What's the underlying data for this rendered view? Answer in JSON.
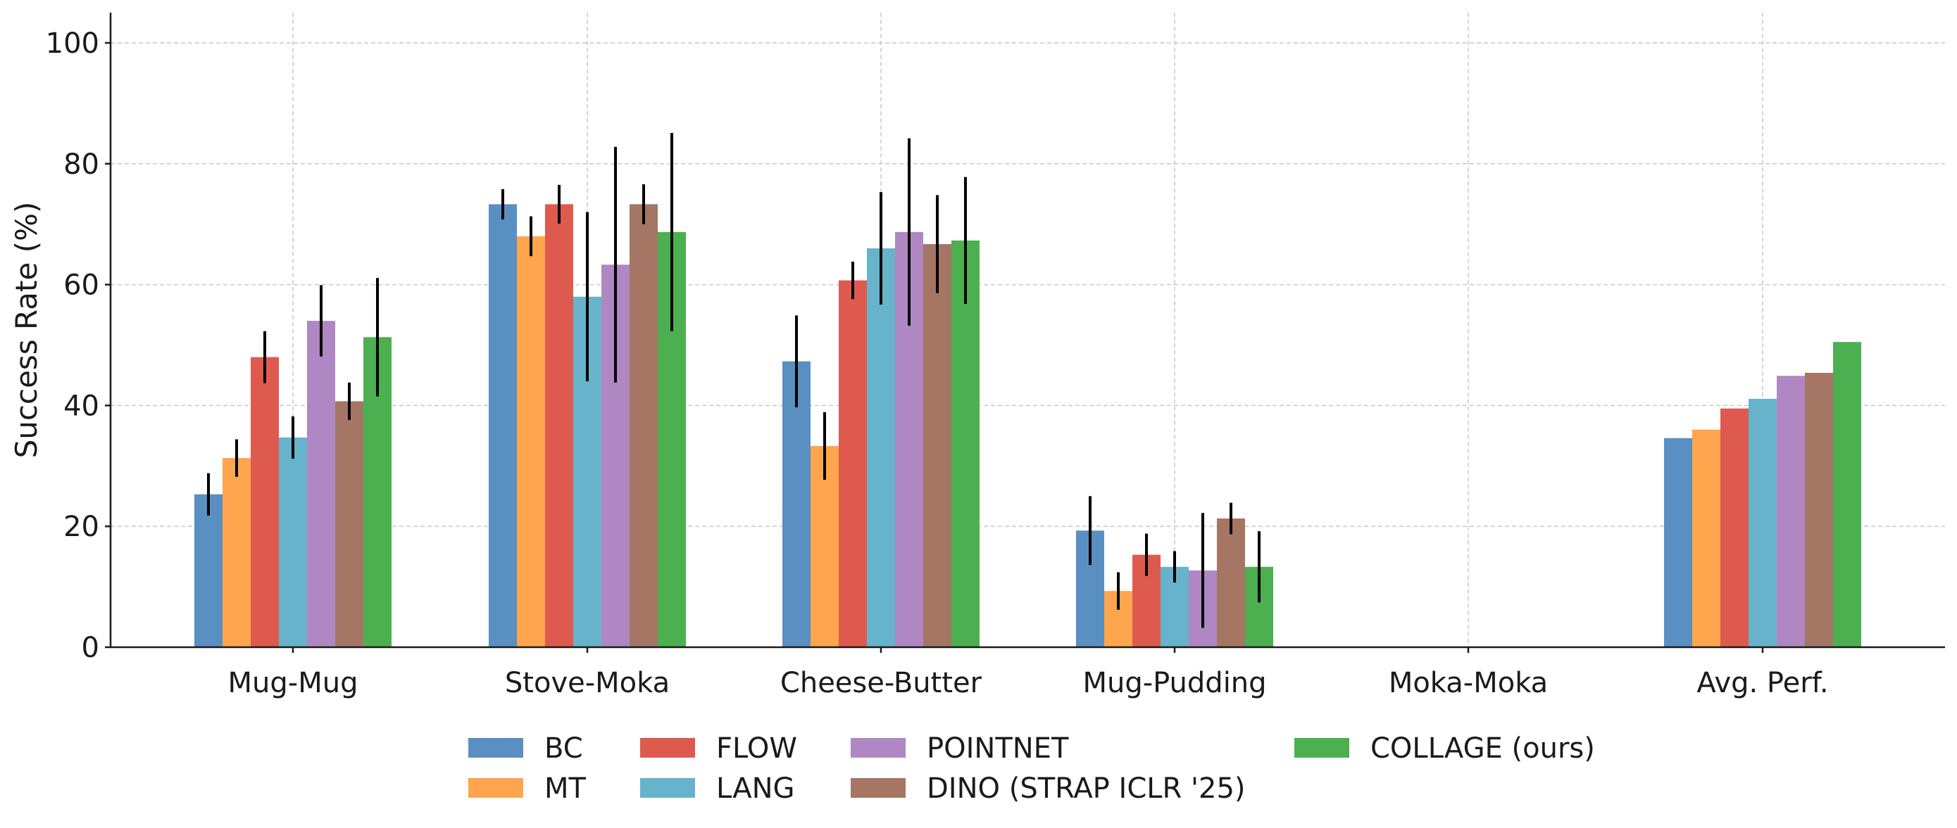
{
  "chart_data": {
    "type": "bar",
    "title": "",
    "xlabel": "",
    "ylabel": "Success Rate (%)",
    "ylim": [
      0,
      105
    ],
    "yticks": [
      0,
      20,
      40,
      60,
      80,
      100
    ],
    "grid": true,
    "legend_position": "bottom-center",
    "categories": [
      "Mug-Mug",
      "Stove-Moka",
      "Cheese-Butter",
      "Mug-Pudding",
      "Moka-Moka",
      "Avg. Perf."
    ],
    "series": [
      {
        "name": "BC",
        "color": "#5a8fc2",
        "values": [
          25.3,
          73.3,
          47.3,
          19.3,
          null,
          34.6
        ],
        "errors": [
          3.5,
          2.5,
          7.6,
          5.7,
          null,
          null
        ]
      },
      {
        "name": "MT",
        "color": "#fea54e",
        "values": [
          31.3,
          68.0,
          33.3,
          9.3,
          null,
          36.0
        ],
        "errors": [
          3.1,
          3.3,
          5.6,
          3.1,
          null,
          null
        ]
      },
      {
        "name": "FLOW",
        "color": "#df5a4e",
        "values": [
          48.0,
          73.3,
          60.7,
          15.3,
          null,
          39.5
        ],
        "errors": [
          4.3,
          3.2,
          3.1,
          3.5,
          null,
          null
        ]
      },
      {
        "name": "LANG",
        "color": "#67b3cc",
        "values": [
          34.7,
          58.0,
          66.0,
          13.3,
          null,
          41.1
        ],
        "errors": [
          3.5,
          14.0,
          9.3,
          2.6,
          null,
          null
        ]
      },
      {
        "name": "POINTNET",
        "color": "#af87c2",
        "values": [
          54.0,
          63.3,
          68.7,
          12.7,
          null,
          44.9
        ],
        "errors": [
          5.9,
          19.5,
          15.5,
          9.5,
          null,
          null
        ]
      },
      {
        "name": "DINO (STRAP ICLR '25)",
        "color": "#a57663",
        "values": [
          40.7,
          73.3,
          66.7,
          21.3,
          null,
          45.4
        ],
        "errors": [
          3.1,
          3.3,
          8.1,
          2.6,
          null,
          null
        ]
      },
      {
        "name": "COLLAGE (ours)",
        "color": "#4caf50",
        "values": [
          51.3,
          68.7,
          67.3,
          13.3,
          null,
          50.5
        ],
        "errors": [
          9.8,
          16.4,
          10.5,
          5.9,
          null,
          null
        ]
      }
    ]
  }
}
